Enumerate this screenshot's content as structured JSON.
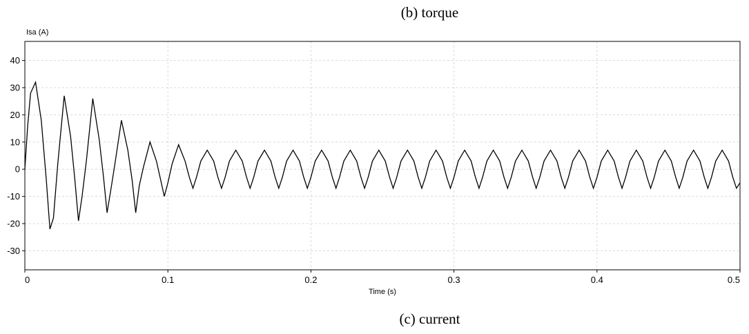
{
  "captions": {
    "top": "(b) torque",
    "bottom": "(c) current"
  },
  "chart_data": {
    "type": "line",
    "ylabel": "Isa (A)",
    "xlabel": "Time (s)",
    "xlim": [
      0,
      0.5
    ],
    "ylim": [
      -37,
      47
    ],
    "xticks": [
      0,
      0.1,
      0.2,
      0.3,
      0.4,
      0.5
    ],
    "yticks": [
      40,
      30,
      20,
      10,
      0,
      -10,
      -20,
      -30
    ],
    "grid": true,
    "series": [
      {
        "x": [
          0,
          0.002,
          0.004,
          0.0075,
          0.0115,
          0.015,
          0.0175,
          0.02,
          0.023,
          0.0275,
          0.032,
          0.035,
          0.0375,
          0.04,
          0.043,
          0.0475,
          0.052,
          0.055,
          0.0575,
          0.06,
          0.063,
          0.0675,
          0.072,
          0.075,
          0.0775,
          0.08,
          0.083,
          0.0875,
          0.092,
          0.095,
          0.0975,
          0.1,
          0.103,
          0.1075,
          0.112,
          0.115,
          0.1175,
          0.12,
          0.123,
          0.1275,
          0.132,
          0.135,
          0.1375,
          0.14,
          0.143,
          0.1475,
          0.152,
          0.155,
          0.1575,
          0.16,
          0.163,
          0.1675,
          0.172,
          0.175,
          0.1775,
          0.18,
          0.183,
          0.1875,
          0.192,
          0.195,
          0.1975,
          0.2,
          0.203,
          0.2075,
          0.212,
          0.215,
          0.2175,
          0.22,
          0.223,
          0.2275,
          0.232,
          0.235,
          0.2375,
          0.24,
          0.243,
          0.2475,
          0.252,
          0.255,
          0.2575,
          0.26,
          0.263,
          0.2675,
          0.272,
          0.275,
          0.2775,
          0.28,
          0.283,
          0.2875,
          0.292,
          0.295,
          0.2975,
          0.3,
          0.303,
          0.3075,
          0.312,
          0.315,
          0.3175,
          0.32,
          0.323,
          0.3275,
          0.332,
          0.335,
          0.3375,
          0.34,
          0.343,
          0.3475,
          0.352,
          0.355,
          0.3575,
          0.36,
          0.363,
          0.3675,
          0.372,
          0.375,
          0.3775,
          0.38,
          0.383,
          0.3875,
          0.392,
          0.395,
          0.3975,
          0.4,
          0.403,
          0.4075,
          0.412,
          0.415,
          0.4175,
          0.42,
          0.423,
          0.4275,
          0.432,
          0.435,
          0.4375,
          0.44,
          0.443,
          0.4475,
          0.452,
          0.455,
          0.4575,
          0.46,
          0.463,
          0.4675,
          0.472,
          0.475,
          0.4775,
          0.48,
          0.483,
          0.4875,
          0.492,
          0.495,
          0.4975,
          0.5
        ],
        "y": [
          0,
          16,
          28,
          32,
          18,
          -4,
          -22,
          -18,
          2,
          27,
          12,
          -4,
          -19,
          -10,
          3,
          26,
          11,
          -3,
          -16,
          -8,
          2,
          18,
          7,
          -4,
          -16,
          -6,
          1,
          10,
          3,
          -4,
          -10,
          -5,
          2,
          9,
          3,
          -3,
          -7,
          -3,
          3,
          7,
          3,
          -3,
          -7,
          -3,
          3,
          7,
          3,
          -3,
          -7,
          -3,
          3,
          7,
          3,
          -3,
          -7,
          -3,
          3,
          7,
          3,
          -3,
          -7,
          -3,
          3,
          7,
          3,
          -3,
          -7,
          -3,
          3,
          7,
          3,
          -3,
          -7,
          -3,
          3,
          7,
          3,
          -3,
          -7,
          -3,
          3,
          7,
          3,
          -3,
          -7,
          -3,
          3,
          7,
          3,
          -3,
          -7,
          -3,
          3,
          7,
          3,
          -3,
          -7,
          -3,
          3,
          7,
          3,
          -3,
          -7,
          -3,
          3,
          7,
          3,
          -3,
          -7,
          -3,
          3,
          7,
          3,
          -3,
          -7,
          -3,
          3,
          7,
          3,
          -3,
          -7,
          -3,
          3,
          7,
          3,
          -3,
          -7,
          -3,
          3,
          7,
          3,
          -3,
          -7,
          -3,
          3,
          7,
          3,
          -3,
          -7,
          -3,
          3,
          7,
          3,
          -3,
          -7,
          -3,
          3,
          7,
          3,
          -3,
          -7,
          -5
        ]
      }
    ],
    "line_color": "#000000",
    "grid_color": "#d9d9d9"
  }
}
